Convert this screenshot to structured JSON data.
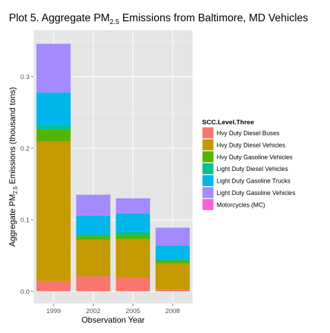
{
  "chart_data": {
    "type": "bar",
    "stacked": true,
    "title": "Plot 5. Aggregate PM",
    "title_subscript": "2.5",
    "title_rest": " Emissions from Baltimore, MD Vehicles",
    "xlabel": "Observation Year",
    "ylabel": "Aggregate PM",
    "ylabel_subscript": "2.5",
    "ylabel_rest": " Emissions (thousand tons)",
    "categories": [
      "1999",
      "2002",
      "2005",
      "2008"
    ],
    "ylim": [
      -0.017,
      0.365
    ],
    "yticks": [
      0.0,
      0.1,
      0.2,
      0.3
    ],
    "ytick_labels": [
      "0.0",
      "0.1",
      "0.2",
      "0.3"
    ],
    "grid": true,
    "legend": {
      "title": "SCC.Level.Three",
      "position": "right"
    },
    "series": [
      {
        "name": "Hvy Duty Diesel Buses",
        "color": "#F8766D",
        "values": [
          0.014,
          0.021,
          0.019,
          0.003
        ]
      },
      {
        "name": "Hvy Duty Diesel Vehicles",
        "color": "#C49A00",
        "values": [
          0.196,
          0.051,
          0.054,
          0.036
        ]
      },
      {
        "name": "Hvy Duty Gasoline Vehicles",
        "color": "#53B400",
        "values": [
          0.016,
          0.005,
          0.006,
          0.004
        ]
      },
      {
        "name": "Light Duty Diesel Vehicles",
        "color": "#00C094",
        "values": [
          0.006,
          0.002,
          0.004,
          0.002
        ]
      },
      {
        "name": "Light Duty Gasoline Trucks",
        "color": "#00B6EB",
        "values": [
          0.046,
          0.027,
          0.026,
          0.019
        ]
      },
      {
        "name": "Light Duty Gasoline Vehicles",
        "color": "#A58AFF",
        "values": [
          0.068,
          0.029,
          0.021,
          0.025
        ]
      },
      {
        "name": "Motorcycles (MC)",
        "color": "#FB61D7",
        "values": [
          0.0,
          0.0,
          0.0,
          0.0
        ]
      }
    ]
  }
}
